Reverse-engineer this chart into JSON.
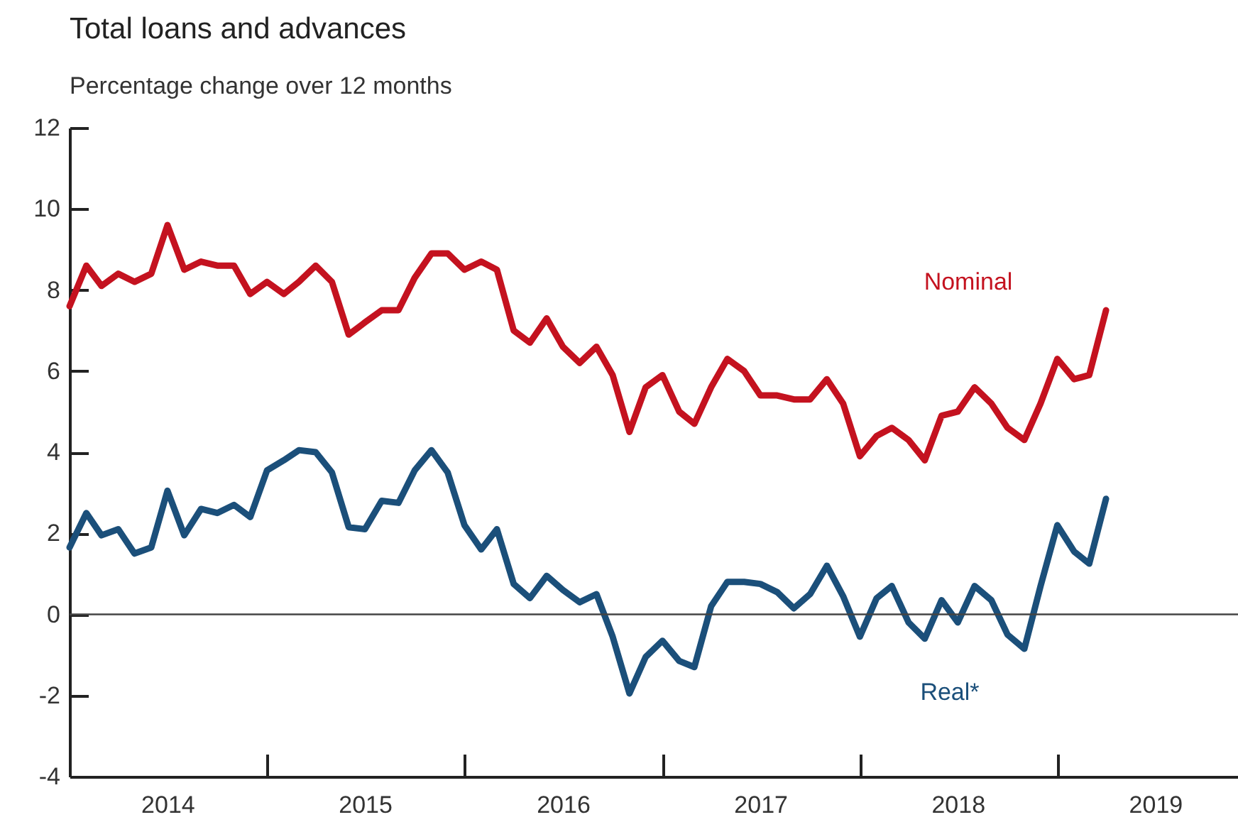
{
  "chart_data": {
    "type": "line",
    "title": "Total loans and advances",
    "subtitle": "Percentage change over 12 months",
    "x": [
      "2014-01",
      "2014-02",
      "2014-03",
      "2014-04",
      "2014-05",
      "2014-06",
      "2014-07",
      "2014-08",
      "2014-09",
      "2014-10",
      "2014-11",
      "2014-12",
      "2015-01",
      "2015-02",
      "2015-03",
      "2015-04",
      "2015-05",
      "2015-06",
      "2015-07",
      "2015-08",
      "2015-09",
      "2015-10",
      "2015-11",
      "2015-12",
      "2016-01",
      "2016-02",
      "2016-03",
      "2016-04",
      "2016-05",
      "2016-06",
      "2016-07",
      "2016-08",
      "2016-09",
      "2016-10",
      "2016-11",
      "2016-12",
      "2017-01",
      "2017-02",
      "2017-03",
      "2017-04",
      "2017-05",
      "2017-06",
      "2017-07",
      "2017-08",
      "2017-09",
      "2017-10",
      "2017-11",
      "2017-12",
      "2018-01",
      "2018-02",
      "2018-03",
      "2018-04",
      "2018-05",
      "2018-06",
      "2018-07",
      "2018-08",
      "2018-09",
      "2018-10",
      "2018-11",
      "2018-12",
      "2019-01",
      "2019-02",
      "2019-03",
      "2019-04"
    ],
    "series": [
      {
        "name": "Nominal",
        "color": "#c4121f",
        "values": [
          7.6,
          8.6,
          8.1,
          8.4,
          8.2,
          8.4,
          9.6,
          8.5,
          8.7,
          8.6,
          8.6,
          7.9,
          8.2,
          7.9,
          8.2,
          8.6,
          8.2,
          6.9,
          7.2,
          7.5,
          7.5,
          8.3,
          8.9,
          8.9,
          8.5,
          8.7,
          8.5,
          7.0,
          6.7,
          7.3,
          6.6,
          6.2,
          6.6,
          5.9,
          4.5,
          5.6,
          5.9,
          5.0,
          4.7,
          5.6,
          6.3,
          6.0,
          5.4,
          5.4,
          5.3,
          5.3,
          5.8,
          5.2,
          3.9,
          4.4,
          4.6,
          4.3,
          3.8,
          4.9,
          5.0,
          5.6,
          5.2,
          4.6,
          4.3,
          5.2,
          6.3,
          5.8,
          5.9,
          7.5
        ]
      },
      {
        "name": "Real*",
        "color": "#1b4f7a",
        "values": [
          1.65,
          2.5,
          1.95,
          2.1,
          1.5,
          1.65,
          3.05,
          1.95,
          2.6,
          2.5,
          2.7,
          2.4,
          3.55,
          3.8,
          4.05,
          4.0,
          3.5,
          2.15,
          2.1,
          2.8,
          2.75,
          3.55,
          4.05,
          3.5,
          2.2,
          1.6,
          2.1,
          0.75,
          0.4,
          0.95,
          0.6,
          0.3,
          0.5,
          -0.55,
          -1.95,
          -1.05,
          -0.65,
          -1.15,
          -1.3,
          0.2,
          0.8,
          0.8,
          0.75,
          0.55,
          0.15,
          0.5,
          1.2,
          0.45,
          -0.55,
          0.4,
          0.7,
          -0.2,
          -0.6,
          0.35,
          -0.2,
          0.7,
          0.35,
          -0.5,
          -0.85,
          0.7,
          2.2,
          1.55,
          1.25,
          2.85
        ]
      }
    ],
    "xlim": [
      "2014-01",
      "2019-12"
    ],
    "xticks": [
      {
        "value": "2014-07",
        "label": "2014"
      },
      {
        "value": "2015-01",
        "label": null
      },
      {
        "value": "2015-07",
        "label": "2015"
      },
      {
        "value": "2016-01",
        "label": null
      },
      {
        "value": "2016-07",
        "label": "2016"
      },
      {
        "value": "2017-01",
        "label": null
      },
      {
        "value": "2017-07",
        "label": "2017"
      },
      {
        "value": "2018-01",
        "label": null
      },
      {
        "value": "2018-07",
        "label": "2018"
      },
      {
        "value": "2019-01",
        "label": null
      },
      {
        "value": "2019-07",
        "label": "2019"
      }
    ],
    "ylim": [
      -4,
      12
    ],
    "yticks": [
      -4,
      -2,
      0,
      2,
      4,
      6,
      8,
      10,
      12
    ],
    "ref_lines": [
      {
        "axis": "y",
        "value": 0
      }
    ],
    "marker": "none",
    "line_style": "solid"
  }
}
